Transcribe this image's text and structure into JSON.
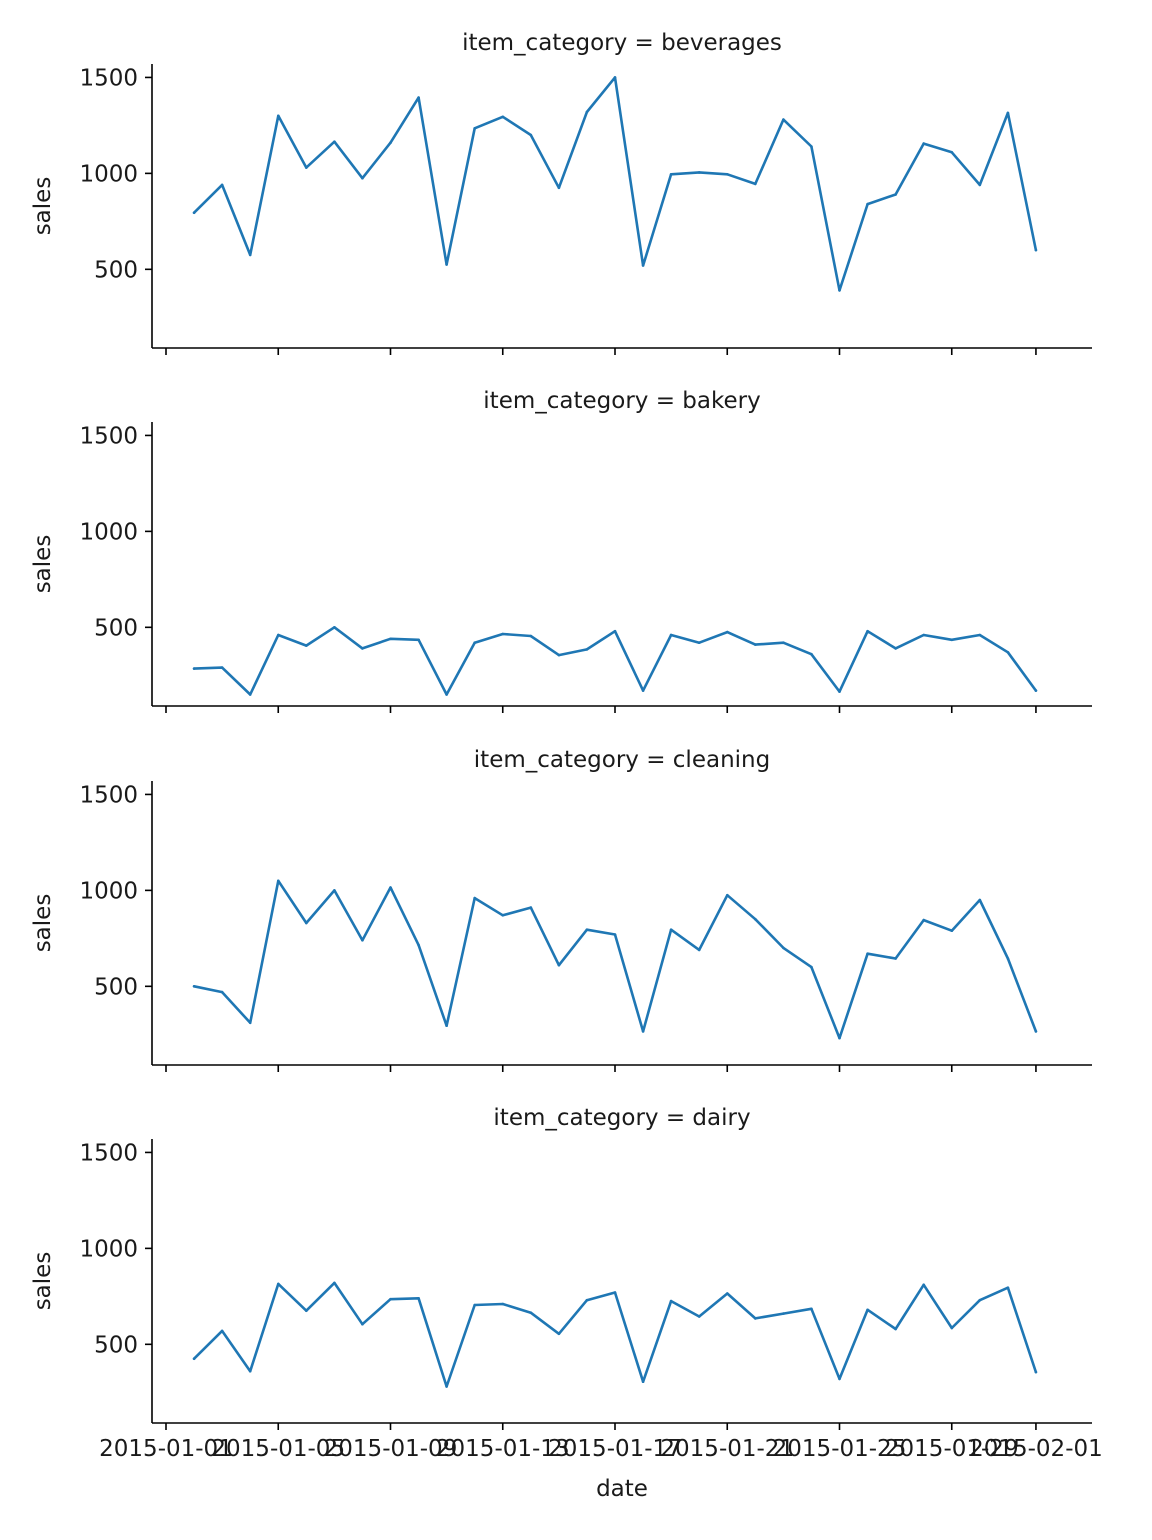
{
  "chart_data": {
    "type": "line",
    "xlabel": "date",
    "ylabel": "sales",
    "x_ticks": [
      "2015-01-01",
      "2015-01-05",
      "2015-01-09",
      "2015-01-13",
      "2015-01-17",
      "2015-01-21",
      "2015-01-25",
      "2015-01-29",
      "2015-02-01"
    ],
    "x": [
      "2015-01-02",
      "2015-01-03",
      "2015-01-04",
      "2015-01-05",
      "2015-01-06",
      "2015-01-07",
      "2015-01-08",
      "2015-01-09",
      "2015-01-10",
      "2015-01-11",
      "2015-01-12",
      "2015-01-13",
      "2015-01-14",
      "2015-01-15",
      "2015-01-16",
      "2015-01-17",
      "2015-01-18",
      "2015-01-19",
      "2015-01-20",
      "2015-01-21",
      "2015-01-22",
      "2015-01-23",
      "2015-01-24",
      "2015-01-25",
      "2015-01-26",
      "2015-01-27",
      "2015-01-28",
      "2015-01-29",
      "2015-01-30",
      "2015-01-31",
      "2015-02-01"
    ],
    "y_ticks": [
      500,
      1000,
      1500
    ],
    "ylim": [
      90,
      1570
    ],
    "xlim": [
      "2015-01-01",
      "2015-02-02"
    ],
    "grid": false,
    "color": "#1f77b4",
    "panels": [
      {
        "title": "item_category = beverages",
        "values": [
          795,
          940,
          575,
          1300,
          1030,
          1165,
          975,
          1160,
          1395,
          525,
          1235,
          1295,
          1200,
          925,
          1320,
          1500,
          520,
          995,
          1005,
          995,
          945,
          1280,
          1140,
          390,
          840,
          890,
          1155,
          1110,
          940,
          1315,
          600
        ]
      },
      {
        "title": "item_category = bakery",
        "values": [
          285,
          290,
          150,
          460,
          405,
          500,
          390,
          440,
          435,
          150,
          420,
          465,
          455,
          355,
          385,
          480,
          170,
          460,
          420,
          475,
          410,
          420,
          360,
          165,
          480,
          390,
          460,
          435,
          460,
          370,
          170
        ]
      },
      {
        "title": "item_category = cleaning",
        "values": [
          500,
          470,
          310,
          1050,
          830,
          1000,
          740,
          1015,
          715,
          295,
          960,
          870,
          910,
          610,
          795,
          770,
          265,
          795,
          690,
          975,
          850,
          700,
          600,
          230,
          670,
          645,
          845,
          790,
          950,
          645,
          265
        ]
      },
      {
        "title": "item_category = dairy",
        "values": [
          425,
          570,
          360,
          815,
          675,
          820,
          605,
          735,
          740,
          280,
          705,
          710,
          665,
          555,
          730,
          770,
          305,
          725,
          645,
          765,
          635,
          660,
          685,
          320,
          680,
          580,
          810,
          585,
          730,
          795,
          355
        ]
      }
    ]
  }
}
